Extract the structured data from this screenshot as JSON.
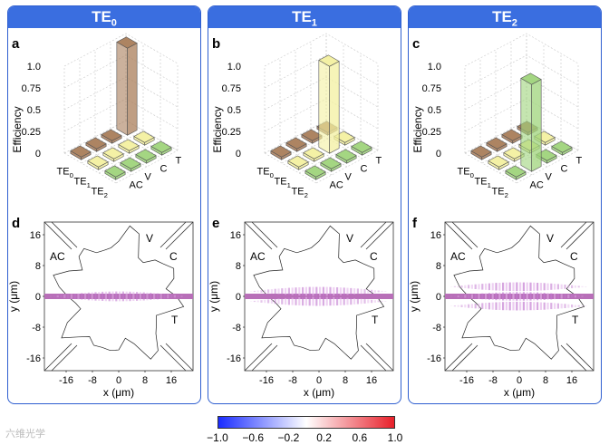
{
  "panels": [
    {
      "header_base": "TE",
      "header_sub": "0",
      "label_a": "a",
      "label_b": "d",
      "color": "#9b6a45",
      "fill": "#a97d5a",
      "peak_row": 0,
      "side_labels": [
        "AC",
        "V",
        "C",
        "T"
      ],
      "dot_amp": 0.55,
      "node_lines": 0
    },
    {
      "header_base": "TE",
      "header_sub": "1",
      "label_a": "b",
      "label_b": "e",
      "color": "#e6e48a",
      "fill": "#f3f0a0",
      "peak_row": 1,
      "side_labels": [
        "AC",
        "V",
        "C",
        "T"
      ],
      "dot_amp": 0.7,
      "node_lines": 1
    },
    {
      "header_base": "TE",
      "header_sub": "2",
      "label_a": "c",
      "label_b": "f",
      "color": "#8fc56a",
      "fill": "#9fd47b",
      "peak_row": 2,
      "side_labels": [
        "AC",
        "V",
        "C",
        "T"
      ],
      "dot_amp": 0.85,
      "node_lines": 2
    }
  ],
  "bar3d": {
    "ylabel": "Efficiency",
    "zticks": [
      "1.0",
      "0.75",
      "0.5",
      "0.25",
      "0"
    ],
    "rows": [
      {
        "base": "TE",
        "sub": "0"
      },
      {
        "base": "TE",
        "sub": "1"
      },
      {
        "base": "TE",
        "sub": "2"
      }
    ],
    "cols": [
      "AC",
      "V",
      "C",
      "T"
    ],
    "values": [
      [
        0.03,
        0.03,
        0.03,
        1.0
      ],
      [
        0.03,
        0.03,
        1.0,
        0.03
      ],
      [
        0.03,
        1.0,
        0.03,
        0.03
      ]
    ]
  },
  "field": {
    "ylabel": "y (μm)",
    "xlabel": "x (μm)",
    "yticks": [
      "16",
      "8",
      "0",
      "-8",
      "-16"
    ],
    "xticks": [
      "-16",
      "-8",
      "0",
      "8",
      "16"
    ]
  },
  "colorbar": {
    "ticks": [
      "−1.0",
      "−0.6",
      "−0.2",
      "0.2",
      "0.6",
      "1.0"
    ],
    "colors": {
      "low": "#1a2cff",
      "mid": "#ffffff",
      "high": "#e8202a"
    }
  },
  "watermark": "六维光学"
}
